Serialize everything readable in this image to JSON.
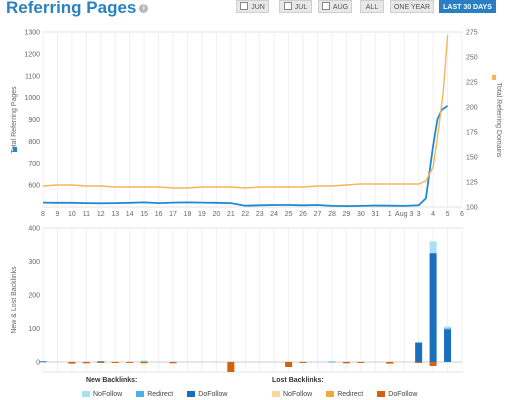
{
  "header": {
    "title": "Referring Pages"
  },
  "range_buttons": [
    {
      "label": "JUN",
      "checkbox": true,
      "active": false
    },
    {
      "label": "JUL",
      "checkbox": true,
      "active": false
    },
    {
      "label": "AUG",
      "checkbox": true,
      "active": false
    },
    {
      "label": "ALL",
      "checkbox": false,
      "active": false
    },
    {
      "label": "ONE YEAR",
      "checkbox": false,
      "active": false
    },
    {
      "label": "LAST 30 DAYS",
      "checkbox": false,
      "active": true
    }
  ],
  "colors": {
    "pages": "#1f8ad0",
    "domains": "#f5b55a",
    "new_nofollow": "#a8e0f3",
    "new_redirect": "#4fb0e3",
    "new_dofollow": "#1a6fbf",
    "lost_nofollow": "#f8d89e",
    "lost_redirect": "#f2a640",
    "lost_dofollow": "#d0610f"
  },
  "chart_data": [
    {
      "type": "line",
      "x": [
        "8",
        "9",
        "10",
        "11",
        "12",
        "13",
        "14",
        "15",
        "16",
        "17",
        "18",
        "19",
        "20",
        "21",
        "22",
        "23",
        "24",
        "25",
        "26",
        "27",
        "28",
        "29",
        "30",
        "31",
        "1",
        "Aug 3",
        "3",
        "4",
        "5",
        "6"
      ],
      "ylabel_left": "Total Referring Pages",
      "ylabel_right": "Total Referring Domains",
      "ylim_left": [
        500,
        1300
      ],
      "yticks_left": [
        600,
        700,
        800,
        900,
        1000,
        1100,
        1200,
        1300
      ],
      "ylim_right": [
        100,
        275
      ],
      "yticks_right": [
        100,
        125,
        150,
        175,
        200,
        225,
        250,
        275
      ],
      "series": [
        {
          "name": "Total Referring Pages",
          "axis": "left",
          "values": [
            [
              0,
              520
            ],
            [
              1,
              519
            ],
            [
              2,
              519
            ],
            [
              3,
              518
            ],
            [
              4,
              517
            ],
            [
              5,
              518
            ],
            [
              6,
              519
            ],
            [
              7,
              521
            ],
            [
              8,
              518
            ],
            [
              9,
              520
            ],
            [
              10,
              521
            ],
            [
              11,
              520
            ],
            [
              12,
              519
            ],
            [
              13,
              518
            ],
            [
              14,
              506
            ],
            [
              15,
              508
            ],
            [
              16,
              509
            ],
            [
              17,
              509
            ],
            [
              18,
              508
            ],
            [
              19,
              509
            ],
            [
              20,
              505
            ],
            [
              21,
              504
            ],
            [
              22,
              505
            ],
            [
              23,
              507
            ],
            [
              24,
              506
            ],
            [
              25,
              505
            ],
            [
              26,
              508
            ],
            [
              26.5,
              540
            ],
            [
              27,
              780
            ],
            [
              27.3,
              900
            ],
            [
              27.6,
              945
            ],
            [
              28,
              962
            ]
          ]
        },
        {
          "name": "Total Referring Domains",
          "axis": "right",
          "values": [
            [
              0,
              121
            ],
            [
              1,
              122
            ],
            [
              2,
              122
            ],
            [
              3,
              121
            ],
            [
              4,
              121
            ],
            [
              5,
              120
            ],
            [
              6,
              120
            ],
            [
              7,
              120
            ],
            [
              8,
              120
            ],
            [
              9,
              119
            ],
            [
              10,
              119
            ],
            [
              11,
              120
            ],
            [
              12,
              120
            ],
            [
              13,
              120
            ],
            [
              14,
              119
            ],
            [
              15,
              120
            ],
            [
              16,
              120
            ],
            [
              17,
              120
            ],
            [
              18,
              120
            ],
            [
              19,
              121
            ],
            [
              20,
              121
            ],
            [
              21,
              122
            ],
            [
              22,
              123
            ],
            [
              23,
              123
            ],
            [
              24,
              123
            ],
            [
              25,
              123
            ],
            [
              26,
              123
            ],
            [
              26.5,
              126
            ],
            [
              27,
              140
            ],
            [
              27.4,
              180
            ],
            [
              27.7,
              215
            ],
            [
              28,
              272
            ]
          ]
        }
      ]
    },
    {
      "type": "bar",
      "ylabel": "New & Lost Backlinks",
      "ylim": [
        -30,
        400
      ],
      "yticks": [
        0,
        100,
        200,
        300,
        400
      ],
      "days": 30,
      "new": [
        {
          "i": 0,
          "nofollow": 0,
          "redirect": 0,
          "dofollow": 2
        },
        {
          "i": 4,
          "nofollow": 0,
          "redirect": 0,
          "dofollow": 2
        },
        {
          "i": 7,
          "nofollow": 3,
          "redirect": 0,
          "dofollow": 1
        },
        {
          "i": 12,
          "nofollow": 2,
          "redirect": 0,
          "dofollow": 0
        },
        {
          "i": 20,
          "nofollow": 1,
          "redirect": 0,
          "dofollow": 2
        },
        {
          "i": 26,
          "nofollow": 0,
          "redirect": 0,
          "dofollow": 58
        },
        {
          "i": 27,
          "nofollow": 35,
          "redirect": 0,
          "dofollow": 325
        },
        {
          "i": 28,
          "nofollow": 6,
          "redirect": 2,
          "dofollow": 98
        }
      ],
      "lost": [
        {
          "i": 2,
          "nofollow": 0,
          "redirect": 0,
          "dofollow": 5
        },
        {
          "i": 3,
          "nofollow": 0,
          "redirect": 0,
          "dofollow": 4
        },
        {
          "i": 4,
          "nofollow": 0,
          "redirect": 0,
          "dofollow": 3
        },
        {
          "i": 5,
          "nofollow": 0,
          "redirect": 0,
          "dofollow": 3
        },
        {
          "i": 6,
          "nofollow": 0,
          "redirect": 0,
          "dofollow": 2
        },
        {
          "i": 7,
          "nofollow": 4,
          "redirect": 0,
          "dofollow": 3
        },
        {
          "i": 9,
          "nofollow": 0,
          "redirect": 0,
          "dofollow": 4
        },
        {
          "i": 13,
          "nofollow": 0,
          "redirect": 0,
          "dofollow": 30
        },
        {
          "i": 17,
          "nofollow": 0,
          "redirect": 0,
          "dofollow": 15
        },
        {
          "i": 18,
          "nofollow": 0,
          "redirect": 0,
          "dofollow": 3
        },
        {
          "i": 21,
          "nofollow": 0,
          "redirect": 0,
          "dofollow": 4
        },
        {
          "i": 22,
          "nofollow": 0,
          "redirect": 0,
          "dofollow": 3
        },
        {
          "i": 24,
          "nofollow": 0,
          "redirect": 0,
          "dofollow": 5
        },
        {
          "i": 26,
          "nofollow": 0,
          "redirect": 0,
          "dofollow": 3
        },
        {
          "i": 27,
          "nofollow": 0,
          "redirect": 0,
          "dofollow": 12
        }
      ],
      "legend": {
        "new_title": "New Backlinks:",
        "lost_title": "Lost Backlinks:",
        "nofollow": "NoFollow",
        "redirect": "Redirect",
        "dofollow": "DoFollow"
      }
    }
  ]
}
